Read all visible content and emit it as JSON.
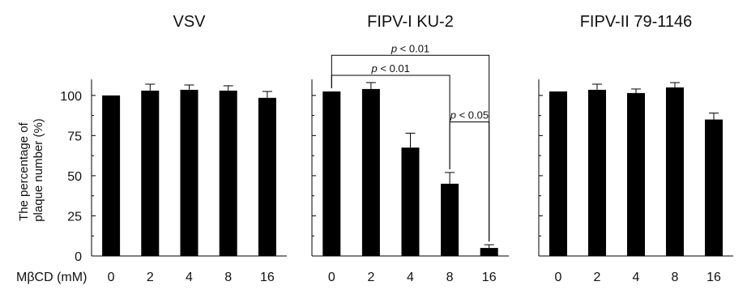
{
  "x_axis_label": "MβCD (mM)",
  "y_axis_label_line1": "The percentage of",
  "y_axis_label_line2": "plaque number (%)",
  "bar_color": "#000000",
  "chart_data": [
    {
      "type": "bar",
      "title": "VSV",
      "categories": [
        "0",
        "2",
        "4",
        "8",
        "16"
      ],
      "values": [
        100,
        103,
        103.5,
        103,
        98.5
      ],
      "errors": [
        0,
        4,
        3,
        3,
        4
      ],
      "ylim": [
        0,
        110
      ],
      "yticks": [
        0,
        25,
        50,
        75,
        100
      ],
      "significance": []
    },
    {
      "type": "bar",
      "title": "FIPV-I KU-2",
      "categories": [
        "0",
        "2",
        "4",
        "8",
        "16"
      ],
      "values": [
        102.5,
        104,
        67.5,
        45,
        5
      ],
      "errors": [
        0,
        4,
        9,
        7,
        2
      ],
      "ylim": [
        0,
        110
      ],
      "yticks": [
        0,
        25,
        50,
        75,
        100
      ],
      "significance": [
        {
          "from": 0,
          "to": 4,
          "level": 125,
          "label": "p < 0.01"
        },
        {
          "from": 0,
          "to": 3,
          "level": 112.5,
          "label": "p < 0.01"
        },
        {
          "from": 3,
          "to": 4,
          "level": 83.5,
          "label": "p < 0.05"
        }
      ]
    },
    {
      "type": "bar",
      "title": "FIPV-II 79-1146",
      "categories": [
        "0",
        "2",
        "4",
        "8",
        "16"
      ],
      "values": [
        102.5,
        103.5,
        101.5,
        105,
        85
      ],
      "errors": [
        0,
        3.5,
        2.5,
        3,
        4
      ],
      "ylim": [
        0,
        110
      ],
      "yticks": [
        0,
        25,
        50,
        75,
        100
      ],
      "significance": []
    }
  ]
}
